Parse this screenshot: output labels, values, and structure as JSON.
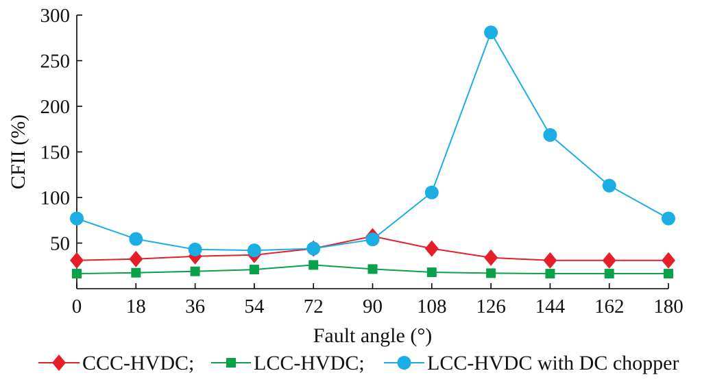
{
  "chart_data": {
    "type": "line",
    "xlabel": "Fault angle (°)",
    "ylabel": "CFII (%)",
    "x": [
      0,
      18,
      36,
      54,
      72,
      90,
      108,
      126,
      144,
      162,
      180
    ],
    "xlim": [
      0,
      180
    ],
    "ylim": [
      0,
      300
    ],
    "x_ticks": [
      "0",
      "18",
      "36",
      "54",
      "72",
      "90",
      "108",
      "126",
      "144",
      "162",
      "180"
    ],
    "y_ticks": [
      "50",
      "100",
      "150",
      "200",
      "250",
      "300"
    ],
    "y_tick_values": [
      50,
      100,
      150,
      200,
      250,
      300
    ],
    "grid": false,
    "legend_position": "bottom",
    "series": [
      {
        "name": "CCC-HVDC;",
        "color": "#e41e2b",
        "marker": "diamond",
        "values": [
          31,
          32.5,
          35.5,
          37,
          44,
          57.5,
          44,
          34,
          31,
          31,
          31
        ]
      },
      {
        "name": "LCC-HVDC;",
        "color": "#0aa14b",
        "marker": "square",
        "values": [
          16.5,
          17.5,
          19,
          21,
          26,
          21.5,
          18,
          17,
          16.5,
          16.5,
          16.5
        ]
      },
      {
        "name": "LCC-HVDC with DC chopper",
        "color": "#1aaee5",
        "marker": "circle",
        "values": [
          77,
          54.5,
          43,
          42,
          44,
          54,
          105.5,
          281,
          168.5,
          113,
          77
        ]
      }
    ]
  }
}
